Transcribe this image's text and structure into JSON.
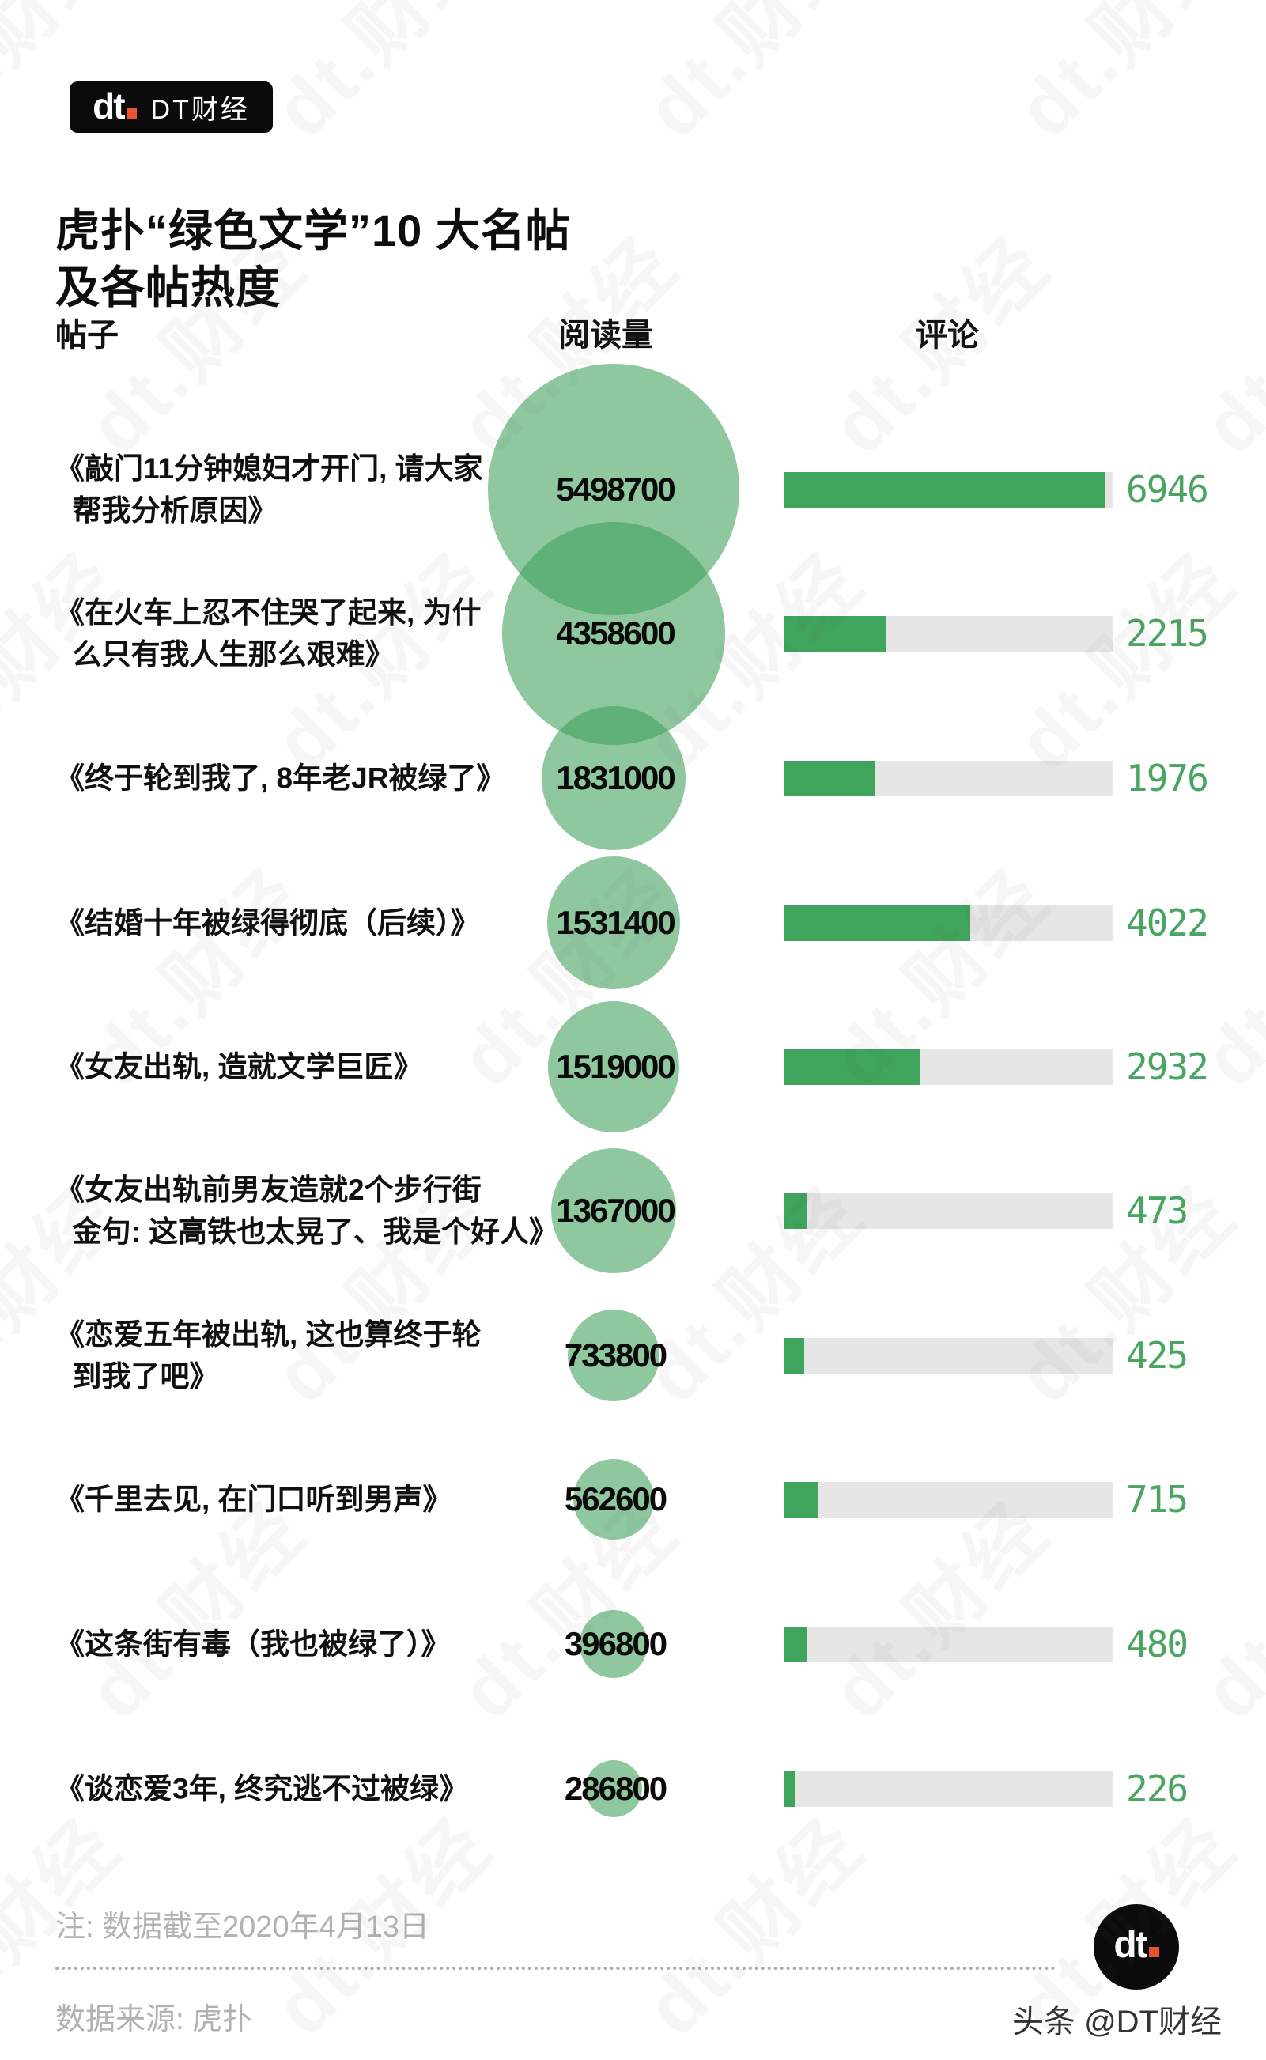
{
  "header": {
    "logo_mark": "dt",
    "logo_name": "DT财经",
    "title_line1": "虎扑“绿色文学”10 大名帖",
    "title_line2": "及各帖热度"
  },
  "columns": {
    "posts": "帖子",
    "reads": "阅读量",
    "comments": "评论"
  },
  "watermark": {
    "text": "dt.财经"
  },
  "chart_data": {
    "type": "bubble-bar",
    "title": "虎扑“绿色文学”10 大名帖及各帖热度",
    "columns": [
      "帖子",
      "阅读量",
      "评论"
    ],
    "bubble_metric": "阅读量",
    "bar_metric": "评论",
    "bar_axis_max": 7100,
    "legend_position": "none",
    "grid": false,
    "colors": {
      "bubble": "#3ea05a",
      "bubble_opacity": 0.58,
      "bar_fill": "#3fa45c",
      "bar_track": "#e6e6e7",
      "value_text": "#4aa562"
    },
    "rows": [
      {
        "title_lines": [
          "《敲门11分钟媳妇才开门, 请大家",
          "帮我分析原因》"
        ],
        "reads": 5498700,
        "comments": 6946
      },
      {
        "title_lines": [
          "《在火车上忍不住哭了起来, 为什",
          "么只有我人生那么艰难》"
        ],
        "reads": 4358600,
        "comments": 2215
      },
      {
        "title_lines": [
          "《终于轮到我了, 8年老JR被绿了》"
        ],
        "reads": 1831000,
        "comments": 1976
      },
      {
        "title_lines": [
          "《结婚十年被绿得彻底（后续）》"
        ],
        "reads": 1531400,
        "comments": 4022
      },
      {
        "title_lines": [
          "《女友出轨, 造就文学巨匠》"
        ],
        "reads": 1519000,
        "comments": 2932
      },
      {
        "title_lines": [
          "《女友出轨前男友造就2个步行街",
          "金句: 这高铁也太晃了、我是个好人》"
        ],
        "reads": 1367000,
        "comments": 473
      },
      {
        "title_lines": [
          "《恋爱五年被出轨, 这也算终于轮",
          "到我了吧》"
        ],
        "reads": 733800,
        "comments": 425
      },
      {
        "title_lines": [
          "《千里去见, 在门口听到男声》"
        ],
        "reads": 562600,
        "comments": 715
      },
      {
        "title_lines": [
          "《这条街有毒（我也被绿了）》"
        ],
        "reads": 396800,
        "comments": 480
      },
      {
        "title_lines": [
          "《谈恋爱3年, 终究逃不过被绿》"
        ],
        "reads": 286800,
        "comments": 226
      }
    ]
  },
  "footer": {
    "note": "注: 数据截至2020年4月13日",
    "source": "数据来源: 虎扑",
    "logo_mark": "dt",
    "credit": "头条 @DT财经"
  }
}
